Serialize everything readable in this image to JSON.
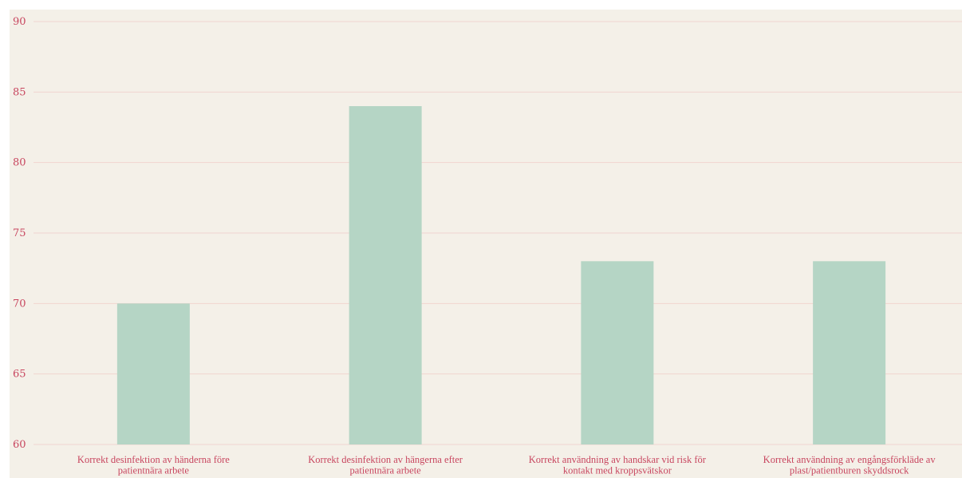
{
  "colors": {
    "background": "#f4f0e8",
    "bar": "#b5d5c5",
    "grid": "#f1d5cf",
    "text": "#c8465f"
  },
  "chart_data": {
    "type": "bar",
    "title": "",
    "xlabel": "",
    "ylabel": "",
    "ylim": [
      60,
      90
    ],
    "yticks": [
      60,
      65,
      70,
      75,
      80,
      85,
      90
    ],
    "grid": true,
    "legend": "none",
    "categories": [
      [
        "Korrekt desinfektion av händerna före",
        "patientnära arbete"
      ],
      [
        "Korrekt desinfektion av hängerna efter",
        "patientnära arbete"
      ],
      [
        "Korrekt användning av handskar vid risk för",
        "kontakt med kroppsvätskor"
      ],
      [
        "Korrekt användning av engångsförkläde av",
        "plast/patientburen skyddsrock"
      ]
    ],
    "values": [
      70,
      84,
      73,
      73
    ]
  }
}
